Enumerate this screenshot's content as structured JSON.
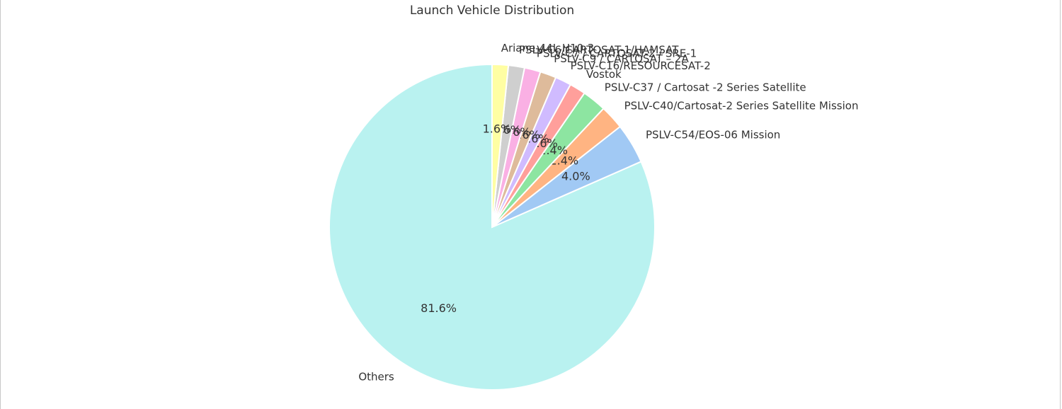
{
  "chart_data": {
    "type": "pie",
    "title": "Launch Vehicle Distribution",
    "labels": [
      "Others",
      "PSLV-C54/EOS-06 Mission",
      "PSLV-C40/Cartosat-2 Series Satellite Mission",
      "PSLV-C37 / Cartosat -2 Series Satellite",
      "Vostok",
      "PSLV-C16/RESOURCESAT-2",
      "PSLV-C9 / CARTOSAT – 2A",
      "PSLV-C7 / CARTOSAT-2 / SRE-1",
      "PSLV-C6/CARTOSAT-1/HAMSAT",
      "Ariane-44L H10-3"
    ],
    "values": [
      81.6,
      4.0,
      2.4,
      2.4,
      1.6,
      1.6,
      1.6,
      1.6,
      1.6,
      1.6
    ],
    "pct_labels": [
      "81.6%",
      "4.0%",
      "2.4%",
      "2.4%",
      "1.6%",
      "1.6%",
      "1.6%",
      "1.6%",
      "1.6%",
      "1.6%"
    ],
    "colors": [
      "#b9f2f0",
      "#a1c9f4",
      "#ffb482",
      "#8de5a1",
      "#ff9f9b",
      "#d0bbff",
      "#debb9b",
      "#fab0e4",
      "#cfcfcf",
      "#fffea3"
    ],
    "start_angle_deg": 90,
    "direction": "counterclockwise"
  }
}
